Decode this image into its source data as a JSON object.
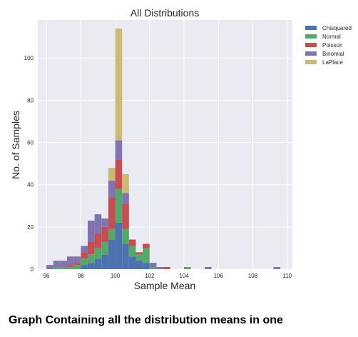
{
  "caption": "Graph Containing all the distribution means in one",
  "chart_data": {
    "type": "bar",
    "stacked": true,
    "style": "histogram",
    "title": "All Distributions",
    "xlabel": "Sample Mean",
    "ylabel": "No. of Samples",
    "xlim": [
      95.5,
      110.3
    ],
    "ylim": [
      0,
      118
    ],
    "xticks": [
      96,
      98,
      100,
      102,
      104,
      106,
      108,
      110
    ],
    "yticks": [
      0,
      20,
      40,
      60,
      80,
      100
    ],
    "grid": true,
    "legend_position": "top-right",
    "bin_edges": [
      96.0,
      96.4,
      96.8,
      97.2,
      97.6,
      98.0,
      98.4,
      98.8,
      99.2,
      99.6,
      100.0,
      100.4,
      100.8,
      101.2,
      101.6,
      102.0,
      102.4,
      102.8,
      103.2,
      103.6,
      104.0,
      104.4,
      104.8,
      105.2,
      105.6,
      106.0,
      106.4,
      106.8,
      107.2,
      107.6,
      108.0,
      108.4,
      108.8,
      109.2,
      109.6
    ],
    "series": [
      {
        "name": "Chisquared",
        "color": "#4c72b0",
        "values": [
          0,
          0,
          0,
          0,
          0,
          2,
          3,
          5,
          7,
          14,
          22,
          12,
          6,
          4,
          3,
          0,
          0,
          0,
          0,
          0,
          0,
          0,
          0,
          0,
          0,
          0,
          0,
          0,
          0,
          0,
          0,
          0,
          0,
          0
        ]
      },
      {
        "name": "Normal",
        "color": "#55a868",
        "values": [
          0,
          1,
          1,
          1,
          2,
          3,
          4,
          5,
          6,
          5,
          16,
          7,
          5,
          3,
          7,
          1,
          0,
          0,
          0,
          0,
          1,
          0,
          0,
          0,
          0,
          0,
          0,
          0,
          0,
          0,
          0,
          0,
          0,
          0
        ]
      },
      {
        "name": "Poisson",
        "color": "#c44e52",
        "values": [
          0,
          0,
          0,
          1,
          1,
          3,
          6,
          7,
          7,
          15,
          14,
          12,
          3,
          1,
          2,
          0,
          0,
          1,
          0,
          0,
          0,
          0,
          0,
          0,
          0,
          0,
          0,
          0,
          0,
          0,
          0,
          0,
          0,
          0
        ]
      },
      {
        "name": "Binomial",
        "color": "#8172b2",
        "values": [
          2,
          3,
          3,
          4,
          3,
          3,
          10,
          9,
          4,
          8,
          9,
          5,
          0,
          0,
          0,
          2,
          1,
          0,
          0,
          0,
          0,
          0,
          0,
          1,
          0,
          0,
          0,
          0,
          0,
          0,
          0,
          0,
          0,
          1
        ]
      },
      {
        "name": "LaPlace",
        "color": "#ccb974",
        "values": [
          0,
          0,
          0,
          0,
          0,
          0,
          0,
          0,
          0,
          6,
          53,
          9,
          0,
          0,
          0,
          0,
          0,
          0,
          0,
          0,
          0,
          0,
          0,
          0,
          0,
          0,
          0,
          0,
          0,
          0,
          0,
          0,
          0,
          0
        ]
      }
    ]
  }
}
